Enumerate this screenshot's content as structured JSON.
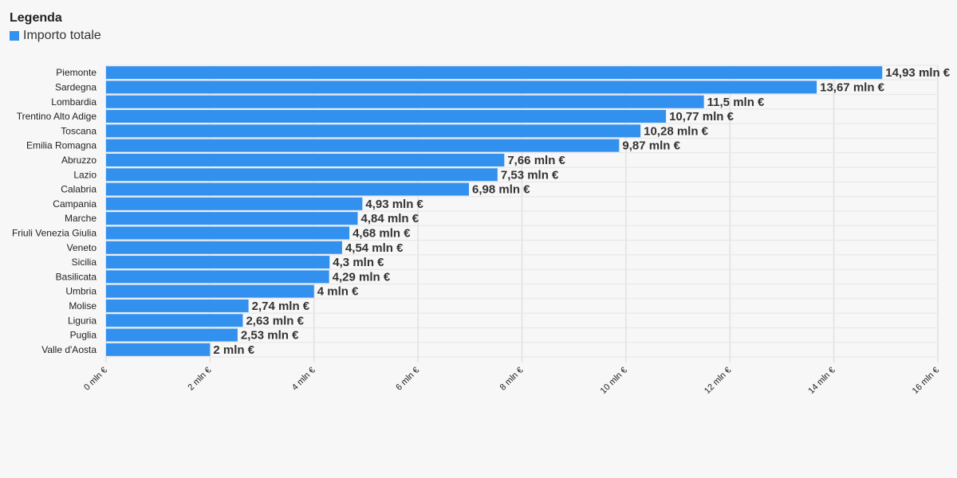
{
  "legend": {
    "title": "Legenda",
    "item_label": "Importo totale"
  },
  "colors": {
    "bar": "#3291ef",
    "grid": "#e6e6e6",
    "background": "#f7f7f7"
  },
  "chart_data": {
    "type": "bar",
    "orientation": "horizontal",
    "categories": [
      "Piemonte",
      "Sardegna",
      "Lombardia",
      "Trentino Alto Adige",
      "Toscana",
      "Emilia Romagna",
      "Abruzzo",
      "Lazio",
      "Calabria",
      "Campania",
      "Marche",
      "Friuli Venezia Giulia",
      "Veneto",
      "Sicilia",
      "Basilicata",
      "Umbria",
      "Molise",
      "Liguria",
      "Puglia",
      "Valle d'Aosta"
    ],
    "series": [
      {
        "name": "Importo totale",
        "values": [
          14.93,
          13.67,
          11.5,
          10.77,
          10.28,
          9.87,
          7.66,
          7.53,
          6.98,
          4.93,
          4.84,
          4.68,
          4.54,
          4.3,
          4.29,
          4.0,
          2.74,
          2.63,
          2.53,
          2.0
        ],
        "value_labels": [
          "14,93 mln €",
          "13,67 mln €",
          "11,5 mln €",
          "10,77 mln €",
          "10,28 mln €",
          "9,87 mln €",
          "7,66 mln €",
          "7,53 mln €",
          "6,98 mln €",
          "4,93 mln €",
          "4,84 mln €",
          "4,68 mln €",
          "4,54 mln €",
          "4,3 mln €",
          "4,29 mln €",
          "4 mln €",
          "2,74 mln €",
          "2,63 mln €",
          "2,53 mln €",
          "2 mln €"
        ]
      }
    ],
    "xlim": [
      0,
      16
    ],
    "x_ticks": [
      0,
      2,
      4,
      6,
      8,
      10,
      12,
      14,
      16
    ],
    "x_tick_labels": [
      "0 mln €",
      "2 mln €",
      "4 mln €",
      "6 mln €",
      "8 mln €",
      "10 mln €",
      "12 mln €",
      "14 mln €",
      "16 mln €"
    ],
    "grid": true,
    "legend_position": "top-left"
  }
}
